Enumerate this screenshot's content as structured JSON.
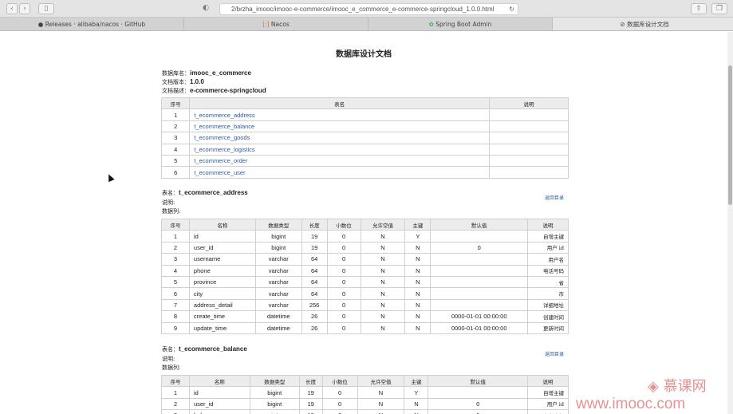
{
  "browser": {
    "url": "2/brzha_imooc/imooc-e-commerce/imooc_e_commerce_e-commerce-springcloud_1.0.0.html",
    "tabs": [
      {
        "label": "Releases · alibaba/nacos · GitHub",
        "icon": "github-icon"
      },
      {
        "label": "Nacos",
        "icon": "nacos-icon"
      },
      {
        "label": "Spring Boot Admin",
        "icon": "spring-icon"
      },
      {
        "label": "数据库设计文档",
        "icon": "compass-icon"
      }
    ]
  },
  "doc": {
    "title": "数据库设计文档",
    "meta": [
      {
        "label": "数据库名：",
        "value": "imooc_e_commerce"
      },
      {
        "label": "文档版本：",
        "value": "1.0.0"
      },
      {
        "label": "文档描述：",
        "value": "e-commerce-springcloud"
      }
    ],
    "index_headers": [
      "序号",
      "表名",
      "说明"
    ],
    "index_rows": [
      [
        "1",
        "t_ecommerce_address",
        ""
      ],
      [
        "2",
        "t_ecommerce_balance",
        ""
      ],
      [
        "3",
        "t_ecommerce_goods",
        ""
      ],
      [
        "4",
        "t_ecommerce_logistics",
        ""
      ],
      [
        "5",
        "t_ecommerce_order",
        ""
      ],
      [
        "6",
        "t_ecommerce_user",
        ""
      ]
    ],
    "col_headers": [
      "序号",
      "名称",
      "数据类型",
      "长度",
      "小数位",
      "允许空值",
      "主键",
      "默认值",
      "说明"
    ],
    "back_label": "返回目录",
    "tables": [
      {
        "label": "表名：",
        "name": "t_ecommerce_address",
        "desc_label": "说明:",
        "cols_label": "数据列:",
        "rows": [
          [
            "1",
            "id",
            "bigint",
            "19",
            "0",
            "N",
            "Y",
            "",
            "自增主键"
          ],
          [
            "2",
            "user_id",
            "bigint",
            "19",
            "0",
            "N",
            "N",
            "0",
            "用户 id"
          ],
          [
            "3",
            "username",
            "varchar",
            "64",
            "0",
            "N",
            "N",
            "",
            "用户名"
          ],
          [
            "4",
            "phone",
            "varchar",
            "64",
            "0",
            "N",
            "N",
            "",
            "电话号码"
          ],
          [
            "5",
            "province",
            "varchar",
            "64",
            "0",
            "N",
            "N",
            "",
            "省"
          ],
          [
            "6",
            "city",
            "varchar",
            "64",
            "0",
            "N",
            "N",
            "",
            "市"
          ],
          [
            "7",
            "address_detail",
            "varchar",
            "256",
            "0",
            "N",
            "N",
            "",
            "详细地址"
          ],
          [
            "8",
            "create_time",
            "datetime",
            "26",
            "0",
            "N",
            "N",
            "0000-01-01 00:00:00",
            "创建时间"
          ],
          [
            "9",
            "update_time",
            "datetime",
            "26",
            "0",
            "N",
            "N",
            "0000-01-01 00:00:00",
            "更新时间"
          ]
        ]
      },
      {
        "label": "表名：",
        "name": "t_ecommerce_balance",
        "desc_label": "说明:",
        "cols_label": "数据列:",
        "rows": [
          [
            "1",
            "id",
            "bigint",
            "19",
            "0",
            "N",
            "Y",
            "",
            "自增主键"
          ],
          [
            "2",
            "user_id",
            "bigint",
            "19",
            "0",
            "N",
            "N",
            "0",
            "用户 id"
          ],
          [
            "3",
            "balance",
            "int",
            "19",
            "0",
            "N",
            "N",
            "0",
            "账户余额"
          ]
        ]
      }
    ]
  },
  "watermark": {
    "text": "www.imooc.com",
    "logo": "慕课网"
  }
}
